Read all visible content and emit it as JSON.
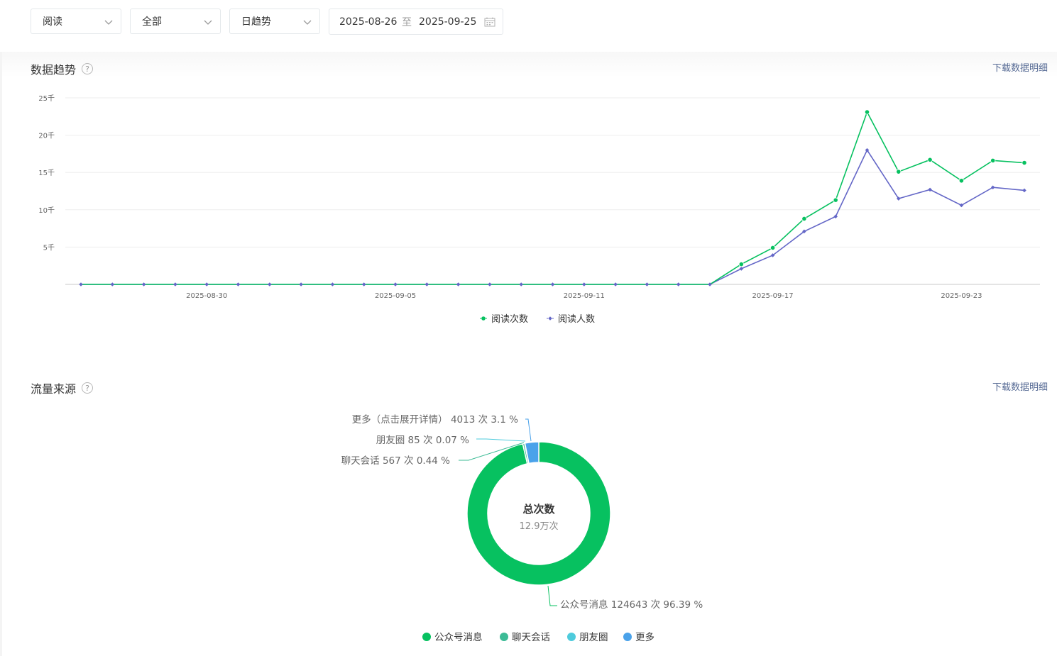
{
  "filters": {
    "metric": "阅读",
    "scope": "全部",
    "granularity": "日趋势",
    "date_from": "2025-08-26",
    "date_sep": "至",
    "date_to": "2025-09-25"
  },
  "trend_section": {
    "title": "数据趋势",
    "help": "?",
    "download": "下载数据明细"
  },
  "source_section": {
    "title": "流量来源",
    "help": "?",
    "download": "下载数据明细"
  },
  "colors": {
    "green": "#07c160",
    "purple": "#6467c7",
    "teal": "#3cbb96",
    "cyan": "#4ecbdc",
    "blue": "#4aa2ea",
    "link": "#576b95"
  },
  "chart_data": [
    {
      "type": "line",
      "x": [
        "2025-08-26",
        "2025-08-27",
        "2025-08-28",
        "2025-08-29",
        "2025-08-30",
        "2025-08-31",
        "2025-09-01",
        "2025-09-02",
        "2025-09-03",
        "2025-09-04",
        "2025-09-05",
        "2025-09-06",
        "2025-09-07",
        "2025-09-08",
        "2025-09-09",
        "2025-09-10",
        "2025-09-11",
        "2025-09-12",
        "2025-09-13",
        "2025-09-14",
        "2025-09-15",
        "2025-09-16",
        "2025-09-17",
        "2025-09-18",
        "2025-09-19",
        "2025-09-20",
        "2025-09-21",
        "2025-09-22",
        "2025-09-23",
        "2025-09-24",
        "2025-09-25"
      ],
      "x_tick_labels": [
        "2025-08-30",
        "2025-09-05",
        "2025-09-11",
        "2025-09-17",
        "2025-09-23"
      ],
      "y_tick_labels": [
        "5千",
        "10千",
        "15千",
        "20千",
        "25千"
      ],
      "ylim": [
        0,
        25000
      ],
      "series": [
        {
          "name": "阅读次数",
          "color": "#07c160",
          "marker": "circle",
          "values": [
            0,
            0,
            0,
            0,
            0,
            0,
            0,
            0,
            0,
            0,
            0,
            0,
            0,
            0,
            0,
            0,
            0,
            0,
            0,
            0,
            0,
            2700,
            4900,
            8800,
            11300,
            23100,
            15100,
            16700,
            13900,
            16600,
            16300
          ]
        },
        {
          "name": "阅读人数",
          "color": "#6467c7",
          "marker": "diamond",
          "values": [
            0,
            0,
            0,
            0,
            0,
            0,
            0,
            0,
            0,
            0,
            0,
            0,
            0,
            0,
            0,
            0,
            0,
            0,
            0,
            0,
            0,
            2100,
            3900,
            7100,
            9100,
            18000,
            11500,
            12700,
            10600,
            13000,
            12600
          ]
        }
      ],
      "legend_position": "bottom-center"
    },
    {
      "type": "pie",
      "variant": "donut",
      "center_title": "总次数",
      "center_value": "12.9万次",
      "total": 129308,
      "slices": [
        {
          "name": "公众号消息",
          "count": 124643,
          "percent": 96.39,
          "label": "公众号消息 124643 次 96.39 %",
          "color": "#07c160"
        },
        {
          "name": "聊天会话",
          "count": 567,
          "percent": 0.44,
          "label": "聊天会话 567 次 0.44 %",
          "color": "#3cbb96"
        },
        {
          "name": "朋友圈",
          "count": 85,
          "percent": 0.07,
          "label": "朋友圈 85 次 0.07 %",
          "color": "#4ecbdc"
        },
        {
          "name": "更多",
          "count": 4013,
          "percent": 3.1,
          "label": "更多（点击展开详情） 4013 次 3.1 %",
          "color": "#4aa2ea"
        }
      ],
      "legend_position": "bottom-center"
    }
  ]
}
